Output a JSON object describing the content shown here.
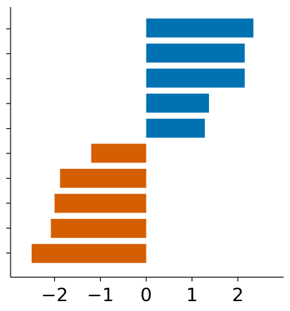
{
  "chart_data": {
    "type": "bar",
    "orientation": "horizontal",
    "title": "",
    "xlabel": "",
    "ylabel": "",
    "xlim": [
      -2.96,
      3.0
    ],
    "x_ticks": [
      -2,
      -1,
      0,
      1,
      2
    ],
    "x_tick_labels": [
      "−2",
      "−1",
      "0",
      "1",
      "2"
    ],
    "y_tick_count": 10,
    "y_tick_labels": [],
    "grid": false,
    "legend": "none",
    "values": [
      2.34,
      2.15,
      2.15,
      1.37,
      1.28,
      -1.2,
      -1.88,
      -2.0,
      -2.08,
      -2.5
    ],
    "colors": {
      "positive": "#0072b2",
      "negative": "#d55e00"
    }
  }
}
